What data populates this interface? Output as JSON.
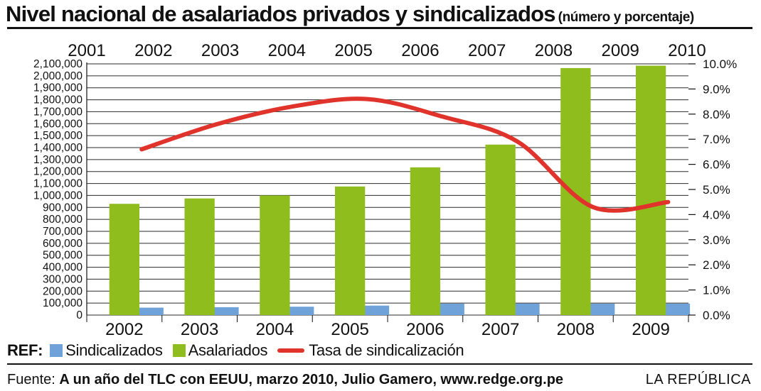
{
  "header": {
    "title": "Nivel nacional de asalariados privados y sindicalizados",
    "subtitle": "(número y porcentaje)"
  },
  "legend": {
    "ref_label": "REF:",
    "items": [
      {
        "label": "Sindicalizados",
        "color": "#6fa2d8"
      },
      {
        "label": "Asalariados",
        "color": "#8fbd1e"
      },
      {
        "label": "Tasa de sindicalización",
        "color": "#e0332c"
      }
    ]
  },
  "footer": {
    "source_prefix": "Fuente:",
    "source_text": "A un año del TLC con EEUU, marzo 2010, Julio Gamero, www.redge.org.pe",
    "brand": "LA REPÚBLICA"
  },
  "chart_data": {
    "type": "bar",
    "categories": [
      "2002",
      "2003",
      "2004",
      "2005",
      "2006",
      "2007",
      "2008",
      "2009"
    ],
    "top_axis_labels": [
      "2001",
      "2002",
      "2003",
      "2004",
      "2005",
      "2006",
      "2007",
      "2008",
      "2009",
      "2010"
    ],
    "series": [
      {
        "name": "Sindicalizados",
        "type": "bar",
        "axis": "left",
        "color": "#6fa2d8",
        "values": [
          62000,
          66000,
          70000,
          79000,
          96000,
          97000,
          96000,
          96000
        ]
      },
      {
        "name": "Asalariados",
        "type": "bar",
        "axis": "left",
        "color": "#8fbd1e",
        "values": [
          930000,
          975000,
          1000000,
          1075000,
          1235000,
          1425000,
          2065000,
          2085000
        ]
      },
      {
        "name": "Tasa de sindicalización",
        "type": "line",
        "axis": "right",
        "color": "#e0332c",
        "values": [
          6.6,
          7.6,
          8.3,
          8.6,
          7.9,
          6.9,
          4.3,
          4.5
        ]
      }
    ],
    "ylim": [
      0,
      2100000
    ],
    "y_ticks": [
      "2,100,000",
      "2,000,000",
      "1,900,000",
      "1,800,000",
      "1,700,000",
      "1,600,000",
      "1,500,000",
      "1,400,000",
      "1,300,000",
      "1,200,000",
      "1,100,000",
      "1,000,000",
      "900,000",
      "800,000",
      "700,000",
      "600,000",
      "500,000",
      "400,000",
      "300,000",
      "200,000",
      "100,000",
      "0"
    ],
    "y2lim": [
      0,
      10
    ],
    "y2_ticks": [
      "10.0%",
      "9.0%",
      "8.0%",
      "7.0%",
      "6.0%",
      "5.0%",
      "4.0%",
      "3.0%",
      "2.0%",
      "1.0%",
      "0.0%"
    ],
    "grid": true,
    "legend_position": "bottom-left"
  }
}
